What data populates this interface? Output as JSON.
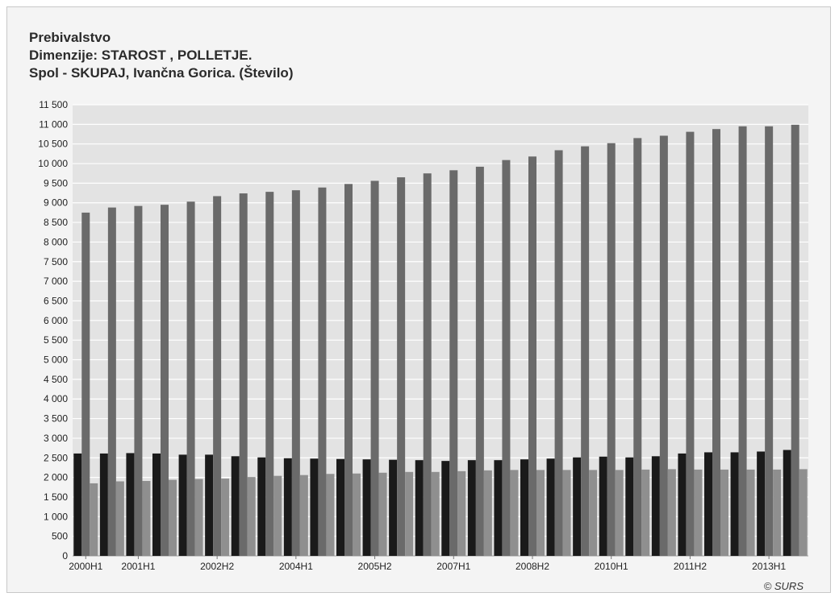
{
  "chart_data": {
    "type": "bar",
    "title_lines": [
      "Prebivalstvo",
      "Dimenzije: STAROST , POLLETJE.",
      "Spol - SKUPAJ, Ivančna Gorica. (Število)"
    ],
    "categories": [
      "2000H1",
      "2000H2",
      "2001H1",
      "2001H2",
      "2002H1",
      "2002H2",
      "2003H1",
      "2003H2",
      "2004H1",
      "2004H2",
      "2005H1",
      "2005H2",
      "2006H1",
      "2006H2",
      "2007H1",
      "2007H2",
      "2008H1",
      "2008H2",
      "2009H1",
      "2009H2",
      "2010H1",
      "2010H2",
      "2011H1",
      "2011H2",
      "2012H1",
      "2012H2",
      "2013H1",
      "2013H2"
    ],
    "tick_labels": [
      "2000H1",
      "2001H1",
      "2002H2",
      "2004H1",
      "2005H2",
      "2007H1",
      "2008H2",
      "2010H1",
      "2011H2",
      "2013H1"
    ],
    "series": [
      {
        "color": "#1a1a1a",
        "values": [
          2610,
          2610,
          2620,
          2610,
          2580,
          2580,
          2540,
          2510,
          2490,
          2480,
          2470,
          2460,
          2450,
          2440,
          2420,
          2440,
          2440,
          2460,
          2480,
          2510,
          2530,
          2510,
          2540,
          2610,
          2640,
          2640,
          2660,
          2700
        ]
      },
      {
        "color": "#6a6a6a",
        "values": [
          8750,
          8880,
          8920,
          8950,
          9030,
          9170,
          9240,
          9280,
          9320,
          9390,
          9480,
          9560,
          9650,
          9750,
          9830,
          9920,
          10090,
          10180,
          10340,
          10440,
          10520,
          10650,
          10710,
          10810,
          10880,
          10950,
          10950,
          10990
        ]
      },
      {
        "color": "#8f8f8f",
        "values": [
          1850,
          1900,
          1910,
          1940,
          1960,
          1970,
          2010,
          2040,
          2060,
          2090,
          2100,
          2120,
          2140,
          2140,
          2160,
          2180,
          2190,
          2190,
          2190,
          2190,
          2190,
          2200,
          2210,
          2200,
          2200,
          2200,
          2200,
          2210
        ]
      }
    ],
    "ylim": [
      0,
      11500
    ],
    "ytick_step": 500,
    "grid": true,
    "copyright": "© SURS"
  }
}
